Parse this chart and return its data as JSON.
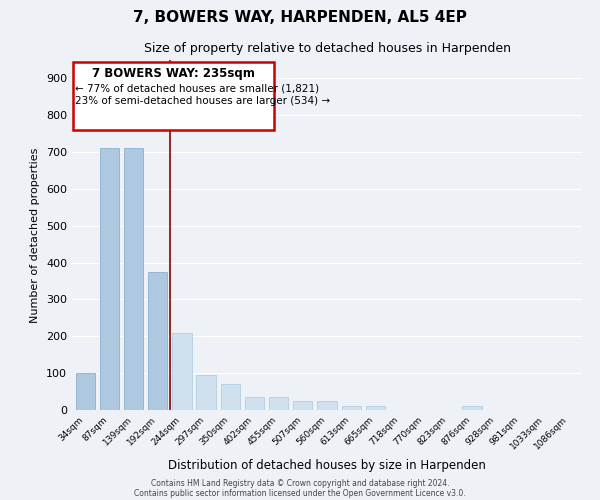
{
  "title": "7, BOWERS WAY, HARPENDEN, AL5 4EP",
  "subtitle": "Size of property relative to detached houses in Harpenden",
  "xlabel": "Distribution of detached houses by size in Harpenden",
  "ylabel": "Number of detached properties",
  "categories": [
    "34sqm",
    "87sqm",
    "139sqm",
    "192sqm",
    "244sqm",
    "297sqm",
    "350sqm",
    "402sqm",
    "455sqm",
    "507sqm",
    "560sqm",
    "613sqm",
    "665sqm",
    "718sqm",
    "770sqm",
    "823sqm",
    "876sqm",
    "928sqm",
    "981sqm",
    "1033sqm",
    "1086sqm"
  ],
  "values": [
    100,
    710,
    710,
    375,
    210,
    95,
    70,
    35,
    35,
    25,
    25,
    10,
    10,
    0,
    0,
    0,
    10,
    0,
    0,
    0,
    0
  ],
  "bar_color_left": "#adc8df",
  "bar_color_right": "#cfe0ef",
  "bar_edge_left": "#7aaac8",
  "bar_edge_right": "#aac8df",
  "property_line_x": 3.5,
  "property_label": "7 BOWERS WAY: 235sqm",
  "annotation_line1": "← 77% of detached houses are smaller (1,821)",
  "annotation_line2": "23% of semi-detached houses are larger (534) →",
  "annotation_box_color": "#ffffff",
  "annotation_box_edgecolor": "#cc0000",
  "red_line_color": "#880000",
  "ylim": [
    0,
    950
  ],
  "yticks": [
    0,
    100,
    200,
    300,
    400,
    500,
    600,
    700,
    800,
    900
  ],
  "footer_line1": "Contains HM Land Registry data © Crown copyright and database right 2024.",
  "footer_line2": "Contains public sector information licensed under the Open Government Licence v3.0.",
  "bg_color": "#eef2f7",
  "plot_bg_color": "#eef2f7",
  "grid_color": "#ffffff"
}
